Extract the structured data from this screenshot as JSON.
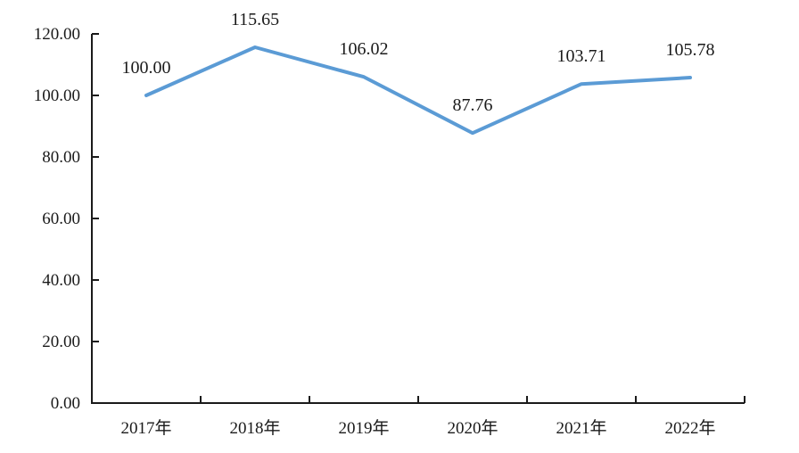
{
  "chart_data": {
    "type": "line",
    "title": "",
    "xlabel": "",
    "ylabel": "",
    "categories": [
      "2017年",
      "2018年",
      "2019年",
      "2020年",
      "2021年",
      "2022年"
    ],
    "series": [
      {
        "values": [
          100.0,
          115.65,
          106.02,
          87.76,
          103.71,
          105.78
        ],
        "labels": [
          "100.00",
          "115.65",
          "106.02",
          "87.76",
          "103.71",
          "105.78"
        ],
        "color": "#5B9BD5"
      }
    ],
    "ylim": [
      0,
      120
    ],
    "ytick_step": 20,
    "ytick_labels": [
      "0.00",
      "20.00",
      "40.00",
      "60.00",
      "80.00",
      "100.00",
      "120.00"
    ],
    "grid": false,
    "legend_position": "none",
    "colors": {
      "line": "#5B9BD5",
      "axis": "#1a1a1a",
      "text": "#1a1a1a",
      "background": "#ffffff"
    }
  }
}
